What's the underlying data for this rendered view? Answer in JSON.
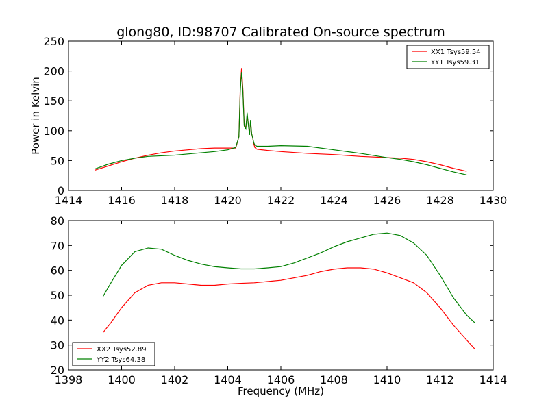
{
  "figure": {
    "title": "glong80, ID:98707 Calibrated On-source spectrum",
    "xlabel": "Frequency (MHz)"
  },
  "colors": {
    "series_red": "#ff0000",
    "series_green": "#008000",
    "axes": "#000000",
    "background": "#ffffff"
  },
  "chart_data": [
    {
      "type": "line",
      "title": "glong80, ID:98707 Calibrated On-source spectrum",
      "xlabel": "",
      "ylabel": "Power in Kelvin",
      "xlim": [
        1414,
        1430
      ],
      "ylim": [
        0,
        250
      ],
      "xticks": [
        1414,
        1416,
        1418,
        1420,
        1422,
        1424,
        1426,
        1428,
        1430
      ],
      "yticks": [
        0,
        50,
        100,
        150,
        200,
        250
      ],
      "grid": false,
      "legend_position": "top-right",
      "series": [
        {
          "name": "XX1 Tsys59.54",
          "color": "#ff0000",
          "x": [
            1415.0,
            1415.5,
            1416.0,
            1416.5,
            1417.0,
            1417.5,
            1418.0,
            1418.5,
            1419.0,
            1419.5,
            1420.0,
            1420.3,
            1420.42,
            1420.47,
            1420.52,
            1420.57,
            1420.62,
            1420.68,
            1420.73,
            1420.78,
            1420.82,
            1420.86,
            1420.9,
            1420.94,
            1420.98,
            1421.02,
            1421.1,
            1421.5,
            1422.0,
            1423.0,
            1424.0,
            1425.0,
            1426.0,
            1426.5,
            1427.0,
            1427.5,
            1428.0,
            1428.5,
            1429.0
          ],
          "values": [
            34,
            41,
            48,
            54,
            59,
            63,
            66,
            68,
            70,
            71,
            71,
            71,
            90,
            170,
            205,
            170,
            110,
            105,
            125,
            110,
            95,
            115,
            95,
            88,
            78,
            72,
            69,
            67,
            65,
            62,
            60,
            57,
            55,
            54,
            52,
            48,
            43,
            37,
            32
          ]
        },
        {
          "name": "YY1 Tsys59.31",
          "color": "#008000",
          "x": [
            1415.0,
            1415.5,
            1416.0,
            1416.5,
            1417.0,
            1417.5,
            1418.0,
            1418.5,
            1419.0,
            1419.5,
            1420.0,
            1420.3,
            1420.42,
            1420.47,
            1420.52,
            1420.57,
            1420.62,
            1420.68,
            1420.73,
            1420.78,
            1420.82,
            1420.86,
            1420.9,
            1420.94,
            1420.98,
            1421.02,
            1421.1,
            1421.5,
            1422.0,
            1423.0,
            1424.0,
            1425.0,
            1426.0,
            1426.5,
            1427.0,
            1427.5,
            1428.0,
            1428.5,
            1429.0
          ],
          "values": [
            36,
            44,
            50,
            54,
            57,
            58,
            59,
            61,
            63,
            65,
            68,
            72,
            90,
            165,
            198,
            165,
            108,
            103,
            130,
            108,
            93,
            118,
            95,
            88,
            80,
            76,
            74,
            74,
            75,
            74,
            68,
            62,
            55,
            52,
            48,
            43,
            37,
            31,
            26
          ]
        }
      ]
    },
    {
      "type": "line",
      "title": "",
      "xlabel": "Frequency (MHz)",
      "ylabel": "",
      "xlim": [
        1398,
        1414
      ],
      "ylim": [
        20,
        80
      ],
      "xticks": [
        1398,
        1400,
        1402,
        1404,
        1406,
        1408,
        1410,
        1412,
        1414
      ],
      "yticks": [
        20,
        30,
        40,
        50,
        60,
        70,
        80
      ],
      "grid": false,
      "legend_position": "bottom-left",
      "series": [
        {
          "name": "XX2 Tsys52.89",
          "color": "#ff0000",
          "x": [
            1399.3,
            1399.6,
            1400.0,
            1400.5,
            1401.0,
            1401.5,
            1402.0,
            1402.5,
            1403.0,
            1403.5,
            1404.0,
            1404.5,
            1405.0,
            1405.5,
            1406.0,
            1406.5,
            1407.0,
            1407.5,
            1408.0,
            1408.5,
            1409.0,
            1409.5,
            1410.0,
            1410.5,
            1411.0,
            1411.5,
            1412.0,
            1412.5,
            1413.0,
            1413.3
          ],
          "values": [
            35,
            39,
            45,
            51,
            54,
            55,
            55,
            54.5,
            54,
            54,
            54.5,
            54.8,
            55,
            55.5,
            56,
            57,
            58,
            59.5,
            60.5,
            61,
            61,
            60.5,
            59,
            57,
            55,
            51,
            45,
            38,
            32,
            28.5
          ]
        },
        {
          "name": "YY2 Tsys64.38",
          "color": "#008000",
          "x": [
            1399.3,
            1399.6,
            1400.0,
            1400.5,
            1401.0,
            1401.5,
            1402.0,
            1402.5,
            1403.0,
            1403.5,
            1404.0,
            1404.5,
            1405.0,
            1405.5,
            1406.0,
            1406.5,
            1407.0,
            1407.5,
            1408.0,
            1408.5,
            1409.0,
            1409.5,
            1410.0,
            1410.5,
            1411.0,
            1411.5,
            1412.0,
            1412.5,
            1413.0,
            1413.3
          ],
          "values": [
            49.5,
            55,
            62,
            67.5,
            69,
            68.5,
            66,
            64,
            62.5,
            61.5,
            61,
            60.6,
            60.6,
            61,
            61.5,
            63,
            65,
            67,
            69.5,
            71.5,
            73,
            74.5,
            75,
            74,
            71,
            66,
            58,
            49,
            42,
            39
          ]
        }
      ]
    }
  ]
}
